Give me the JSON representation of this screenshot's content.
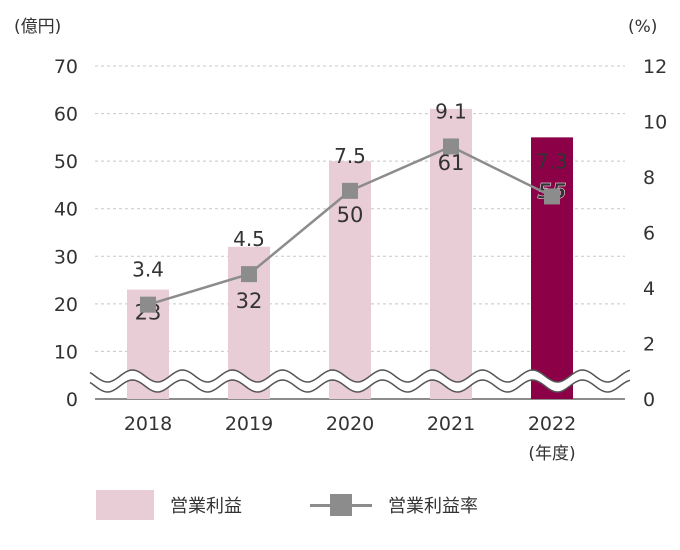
{
  "chart_data": {
    "type": "bar+line",
    "categories": [
      "2018",
      "2019",
      "2020",
      "2021",
      "2022"
    ],
    "x_suffix": "(年度)",
    "left_axis": {
      "unit": "(億円)",
      "ticks": [
        0,
        10,
        20,
        30,
        40,
        50,
        60,
        70
      ],
      "ylim": [
        0,
        70
      ]
    },
    "right_axis": {
      "unit": "(%)",
      "ticks": [
        0,
        2,
        4,
        6,
        8,
        10,
        12
      ],
      "ylim": [
        0,
        12
      ]
    },
    "series": [
      {
        "name": "営業利益",
        "type": "bar",
        "axis": "left",
        "values": [
          23,
          32,
          50,
          61,
          55
        ],
        "labels": [
          "23",
          "32",
          "50",
          "61",
          "55"
        ]
      },
      {
        "name": "営業利益率",
        "type": "line",
        "axis": "right",
        "values": [
          3.4,
          4.5,
          7.5,
          9.1,
          7.3
        ],
        "labels": [
          "3.4",
          "4.5",
          "7.5",
          "9.1",
          "7.3"
        ]
      }
    ],
    "highlight_index": 4,
    "axis_break": true,
    "grid": "dashed-horizontal",
    "colors": {
      "bar": "#e8ccd6",
      "bar_highlight": "#8b0047",
      "line": "#8c8c8c",
      "highlight_label": "#8b0047",
      "text": "#333333"
    }
  },
  "legend": [
    {
      "label": "営業利益",
      "kind": "bar"
    },
    {
      "label": "営業利益率",
      "kind": "line"
    }
  ]
}
